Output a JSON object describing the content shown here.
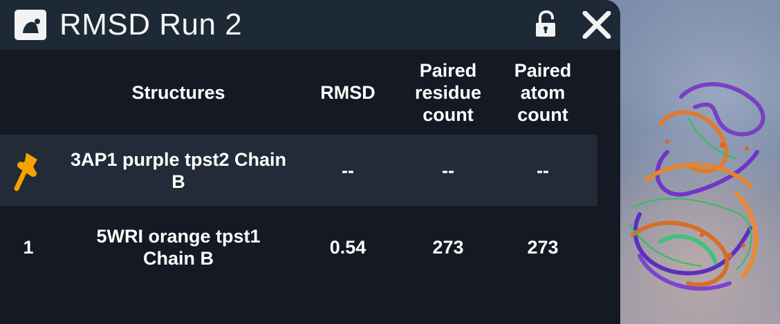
{
  "window": {
    "title": "RMSD Run 2",
    "icons": {
      "app": "image-icon",
      "lock": "unlock-icon",
      "close": "close-icon"
    }
  },
  "table": {
    "headers": {
      "structures": "Structures",
      "rmsd": "RMSD",
      "paired_residue_count": "Paired\nresidue\ncount",
      "paired_atom_count": "Paired\natom\ncount"
    },
    "rows": [
      {
        "marker": "pin-icon",
        "structure": "3AP1 purple tpst2 Chain\nB",
        "rmsd": "--",
        "residue_count": "--",
        "atom_count": "--"
      },
      {
        "marker": "1",
        "structure": "5WRI orange tpst1\nChain B",
        "rmsd": "0.54",
        "residue_count": "273",
        "atom_count": "273"
      }
    ]
  },
  "colors": {
    "panel_bg": "#141923",
    "titlebar_bg": "#1d2935",
    "pinned_row_bg": "#222b37",
    "pin_color": "#f5a300",
    "text": "#ffffff"
  }
}
